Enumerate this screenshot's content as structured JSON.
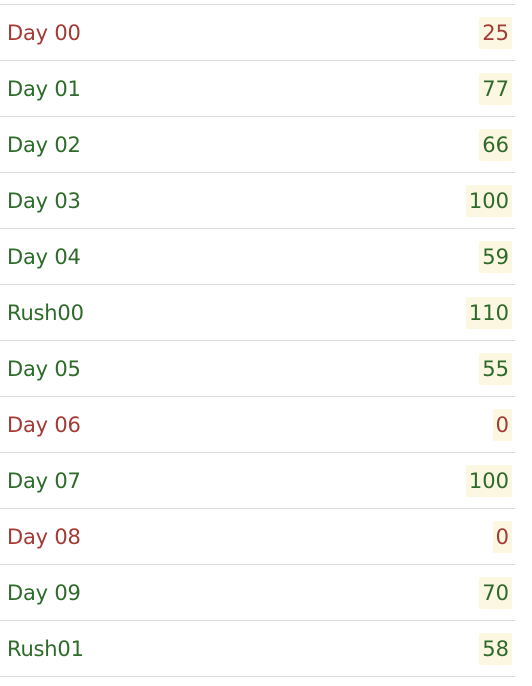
{
  "colors": {
    "pass": "#2e6a2a",
    "fail": "#a33a35",
    "score_background": "#fcf7e1",
    "divider": "#dcdcdc"
  },
  "rows": [
    {
      "label": "Day 00",
      "score": "25",
      "status": "fail"
    },
    {
      "label": "Day 01",
      "score": "77",
      "status": "pass"
    },
    {
      "label": "Day 02",
      "score": "66",
      "status": "pass"
    },
    {
      "label": "Day 03",
      "score": "100",
      "status": "pass"
    },
    {
      "label": "Day 04",
      "score": "59",
      "status": "pass"
    },
    {
      "label": "Rush00",
      "score": "110",
      "status": "pass"
    },
    {
      "label": "Day 05",
      "score": "55",
      "status": "pass"
    },
    {
      "label": "Day 06",
      "score": "0",
      "status": "fail"
    },
    {
      "label": "Day 07",
      "score": "100",
      "status": "pass"
    },
    {
      "label": "Day 08",
      "score": "0",
      "status": "fail"
    },
    {
      "label": "Day 09",
      "score": "70",
      "status": "pass"
    },
    {
      "label": "Rush01",
      "score": "58",
      "status": "pass"
    }
  ]
}
